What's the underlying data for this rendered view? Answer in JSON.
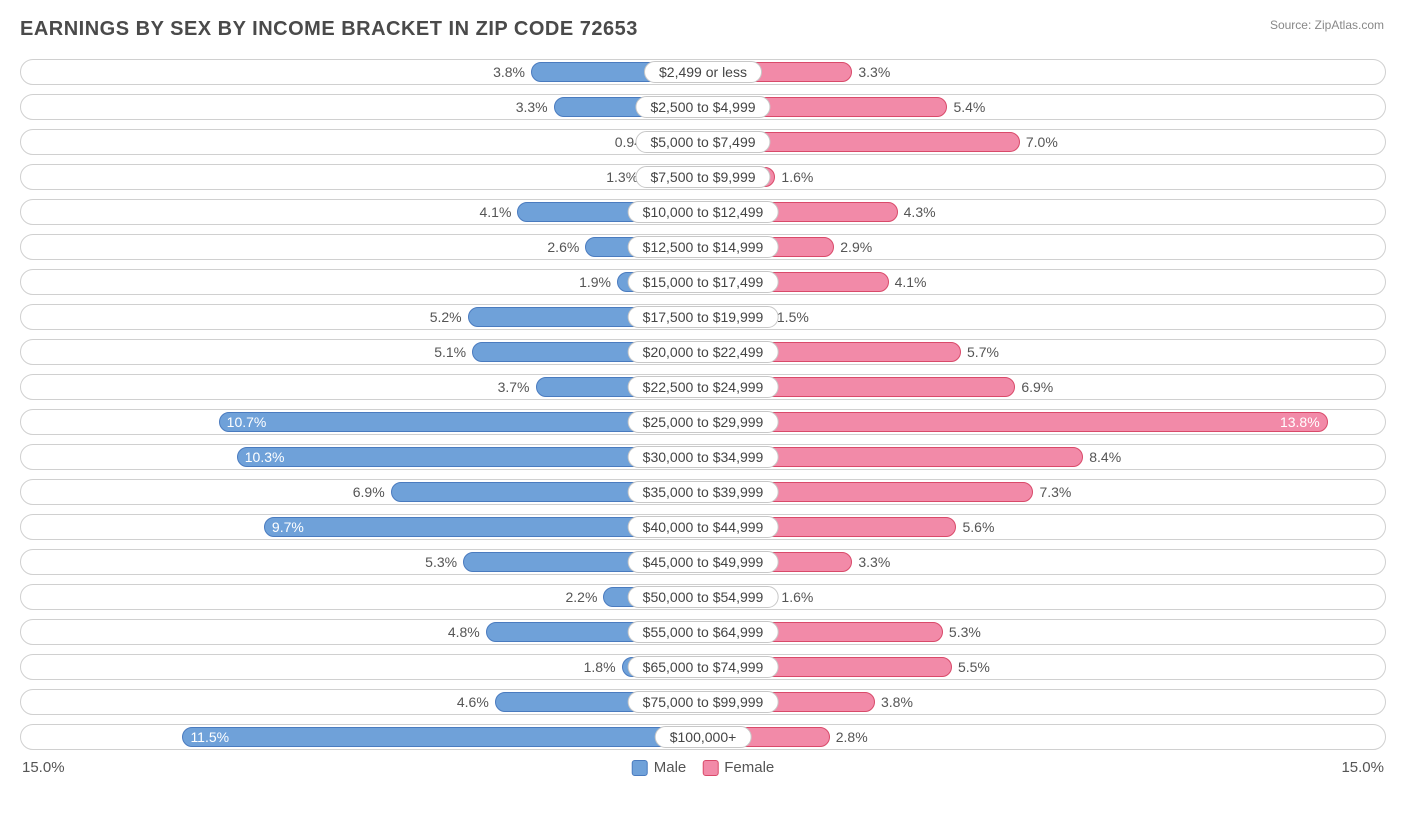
{
  "title": "EARNINGS BY SEX BY INCOME BRACKET IN ZIP CODE 72653",
  "source": "Source: ZipAtlas.com",
  "axis_max": 15.0,
  "axis_label_left": "15.0%",
  "axis_label_right": "15.0%",
  "inside_threshold": 9.0,
  "colors": {
    "male_fill": "#6fa1d9",
    "male_border": "#4a7bbf",
    "female_fill": "#f28aa8",
    "female_border": "#d94a6a",
    "row_border": "#d0d0d0",
    "text": "#555555",
    "background": "#ffffff"
  },
  "legend": {
    "male": "Male",
    "female": "Female"
  },
  "rows": [
    {
      "category": "$2,499 or less",
      "male": 3.8,
      "female": 3.3
    },
    {
      "category": "$2,500 to $4,999",
      "male": 3.3,
      "female": 5.4
    },
    {
      "category": "$5,000 to $7,499",
      "male": 0.94,
      "female": 7.0
    },
    {
      "category": "$7,500 to $9,999",
      "male": 1.3,
      "female": 1.6
    },
    {
      "category": "$10,000 to $12,499",
      "male": 4.1,
      "female": 4.3
    },
    {
      "category": "$12,500 to $14,999",
      "male": 2.6,
      "female": 2.9
    },
    {
      "category": "$15,000 to $17,499",
      "male": 1.9,
      "female": 4.1
    },
    {
      "category": "$17,500 to $19,999",
      "male": 5.2,
      "female": 1.5
    },
    {
      "category": "$20,000 to $22,499",
      "male": 5.1,
      "female": 5.7
    },
    {
      "category": "$22,500 to $24,999",
      "male": 3.7,
      "female": 6.9
    },
    {
      "category": "$25,000 to $29,999",
      "male": 10.7,
      "female": 13.8
    },
    {
      "category": "$30,000 to $34,999",
      "male": 10.3,
      "female": 8.4
    },
    {
      "category": "$35,000 to $39,999",
      "male": 6.9,
      "female": 7.3
    },
    {
      "category": "$40,000 to $44,999",
      "male": 9.7,
      "female": 5.6
    },
    {
      "category": "$45,000 to $49,999",
      "male": 5.3,
      "female": 3.3
    },
    {
      "category": "$50,000 to $54,999",
      "male": 2.2,
      "female": 1.6
    },
    {
      "category": "$55,000 to $64,999",
      "male": 4.8,
      "female": 5.3
    },
    {
      "category": "$65,000 to $74,999",
      "male": 1.8,
      "female": 5.5
    },
    {
      "category": "$75,000 to $99,999",
      "male": 4.6,
      "female": 3.8
    },
    {
      "category": "$100,000+",
      "male": 11.5,
      "female": 2.8
    }
  ]
}
